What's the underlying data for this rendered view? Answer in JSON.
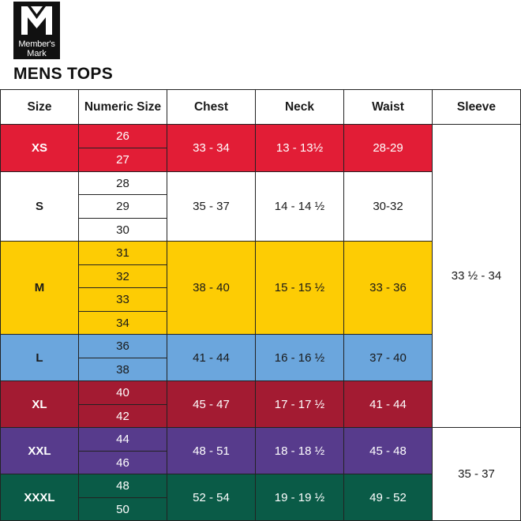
{
  "logo": {
    "line1": "Member's",
    "line2": "Mark"
  },
  "title": "MENS TOPS",
  "headers": [
    "Size",
    "Numeric Size",
    "Chest",
    "Neck",
    "Waist",
    "Sleeve"
  ],
  "groups": [
    {
      "size": "XS",
      "numeric": [
        "26",
        "27"
      ],
      "chest": "33 - 34",
      "neck": "13 - 13½",
      "waist": "28-29",
      "bg": "#e21d36",
      "color": "#ffffff"
    },
    {
      "size": "S",
      "numeric": [
        "28",
        "29",
        "30"
      ],
      "chest": "35 - 37",
      "neck": "14 - 14 ½",
      "waist": "30-32",
      "bg": "#ffffff",
      "color": "#1a1a1a"
    },
    {
      "size": "M",
      "numeric": [
        "31",
        "32",
        "33",
        "34"
      ],
      "chest": "38 - 40",
      "neck": "15 - 15 ½",
      "waist": "33 - 36",
      "bg": "#fdcc04",
      "color": "#1a1a1a"
    },
    {
      "size": "L",
      "numeric": [
        "36",
        "38"
      ],
      "chest": "41 - 44",
      "neck": "16 - 16 ½",
      "waist": "37 - 40",
      "bg": "#6ba6dd",
      "color": "#1a1a1a"
    },
    {
      "size": "XL",
      "numeric": [
        "40",
        "42"
      ],
      "chest": "45 - 47",
      "neck": "17 - 17 ½",
      "waist": "41 - 44",
      "bg": "#a31b32",
      "color": "#ffffff"
    },
    {
      "size": "XXL",
      "numeric": [
        "44",
        "46"
      ],
      "chest": "48 - 51",
      "neck": "18 - 18 ½",
      "waist": "45 - 48",
      "bg": "#573b8c",
      "color": "#ffffff"
    },
    {
      "size": "XXXL",
      "numeric": [
        "48",
        "50"
      ],
      "chest": "52 - 54",
      "neck": "19 - 19 ½",
      "waist": "49 - 52",
      "bg": "#0a5b47",
      "color": "#ffffff"
    }
  ],
  "sleeve": [
    {
      "value": "33 ½ - 34",
      "span_groups": 5
    },
    {
      "value": "35 - 37",
      "span_groups": 2
    }
  ]
}
